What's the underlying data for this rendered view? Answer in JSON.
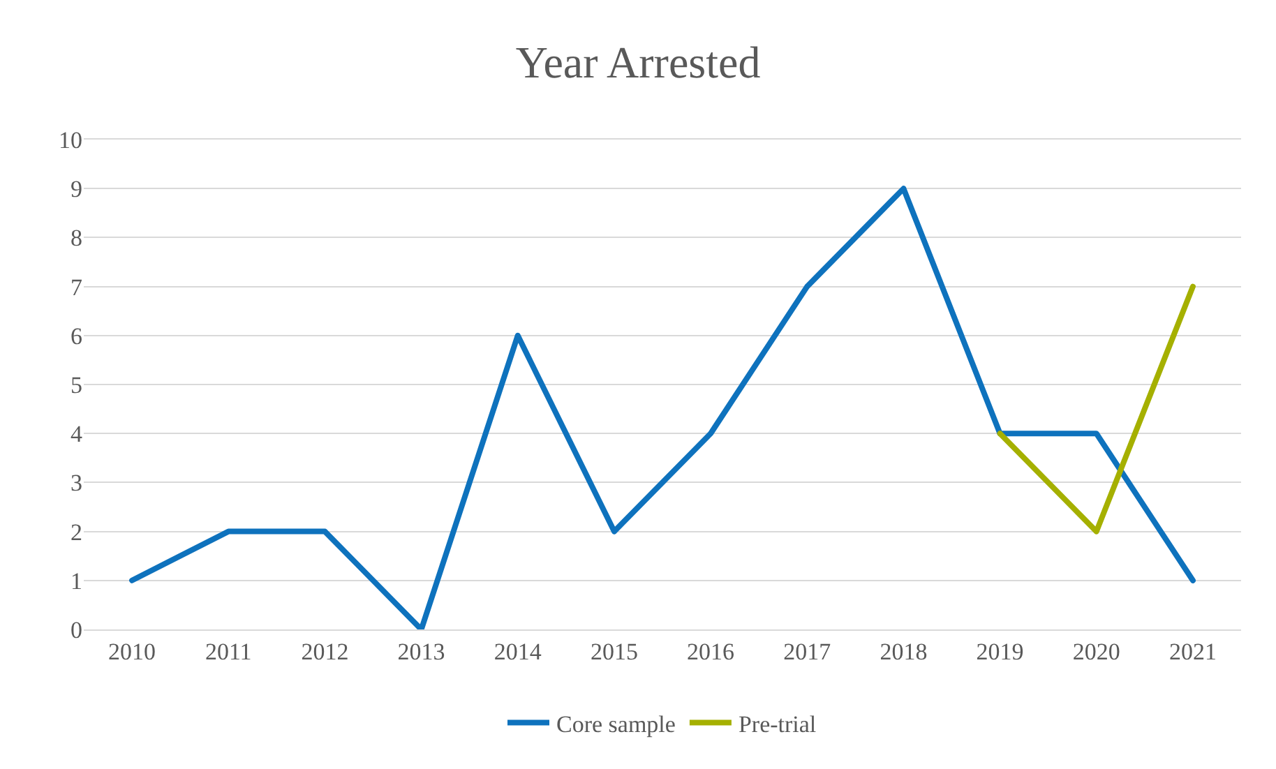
{
  "chart_data": {
    "type": "line",
    "title": "Year Arrested",
    "categories": [
      "2010",
      "2011",
      "2012",
      "2013",
      "2014",
      "2015",
      "2016",
      "2017",
      "2018",
      "2019",
      "2020",
      "2021"
    ],
    "series": [
      {
        "name": "Core sample",
        "color": "#0e72bd",
        "values": [
          1,
          2,
          2,
          0,
          6,
          2,
          4,
          7,
          9,
          4,
          4,
          1
        ]
      },
      {
        "name": "Pre-trial",
        "color": "#a5b000",
        "values": [
          null,
          null,
          null,
          null,
          null,
          null,
          null,
          null,
          null,
          4,
          2,
          7
        ]
      }
    ],
    "ylim": [
      0,
      10
    ],
    "yticks": [
      0,
      1,
      2,
      3,
      4,
      5,
      6,
      7,
      8,
      9,
      10
    ],
    "grid": "y",
    "legend": "bottom",
    "marker": "none",
    "line_style": "solid"
  }
}
